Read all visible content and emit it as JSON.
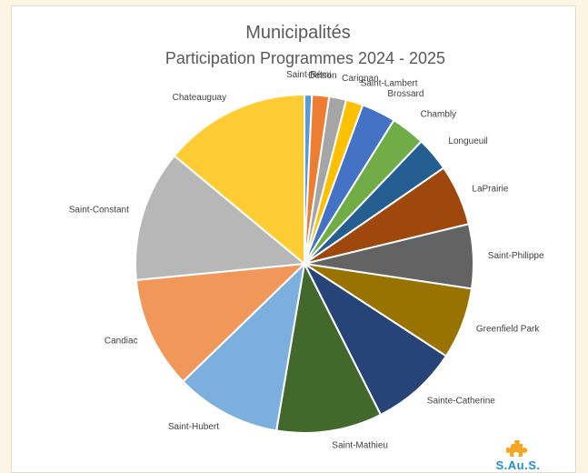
{
  "chart_data": {
    "type": "pie",
    "title": "Municipalités",
    "subtitle": "Participation Programmes 2024 - 2025",
    "slices": [
      {
        "label": "Saint-Rémi",
        "value": 0.7,
        "color": "#5b9bd5"
      },
      {
        "label": "Delson",
        "value": 1.6,
        "color": "#ed7d31"
      },
      {
        "label": "Carignan",
        "value": 1.6,
        "color": "#a5a5a5"
      },
      {
        "label": "Saint-Lambert",
        "value": 1.6,
        "color": "#ffc000"
      },
      {
        "label": "Brossard",
        "value": 3.2,
        "color": "#4472c4"
      },
      {
        "label": "Chambly",
        "value": 3.2,
        "color": "#70ad47"
      },
      {
        "label": "Longueuil",
        "value": 3.2,
        "color": "#255e91"
      },
      {
        "label": "LaPrairie",
        "value": 5.7,
        "color": "#9e480e"
      },
      {
        "label": "Saint-Philippe",
        "value": 6.0,
        "color": "#636363"
      },
      {
        "label": "Greenfield Park",
        "value": 6.7,
        "color": "#997300"
      },
      {
        "label": "Sainte-Catherine",
        "value": 8.2,
        "color": "#264478"
      },
      {
        "label": "Saint-Mathieu",
        "value": 9.9,
        "color": "#43682b"
      },
      {
        "label": "Saint-Hubert",
        "value": 9.9,
        "color": "#7cafdd"
      },
      {
        "label": "Candiac",
        "value": 10.5,
        "color": "#f1975a"
      },
      {
        "label": "Saint-Constant",
        "value": 12.3,
        "color": "#b7b7b7"
      },
      {
        "label": "Chateauguay",
        "value": 13.7,
        "color": "#ffcd33"
      }
    ],
    "legend": "none"
  },
  "logo": {
    "text": "S.Au.S.",
    "color": "#1f8fd1",
    "mark_color": "#f5a623"
  }
}
